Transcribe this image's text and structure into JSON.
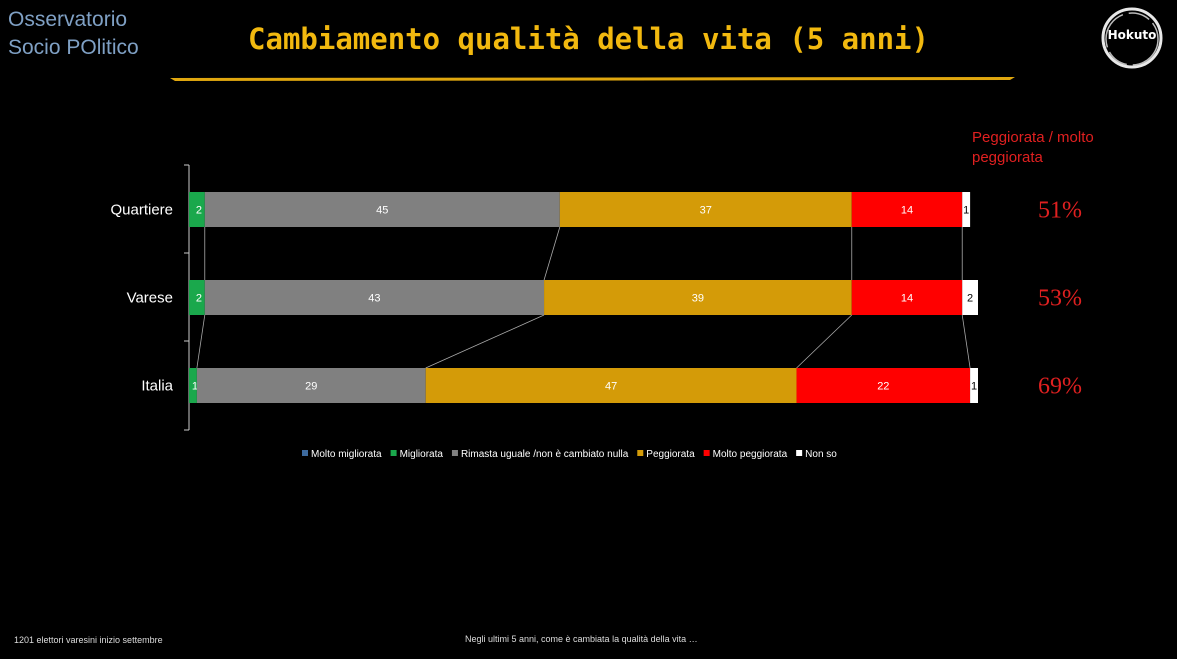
{
  "brand": {
    "line1": "Osservatorio",
    "line2": "Socio POlitico"
  },
  "logo_text": "Hokuto",
  "chart_data": {
    "type": "bar",
    "stacked": true,
    "horizontal": true,
    "title": "Cambiamento qualità della vita (5 anni)",
    "categories": [
      "Quartiere",
      "Varese",
      "Italia"
    ],
    "series": [
      {
        "name": "Molto migliorata",
        "color": "#3d6a9e",
        "values": [
          0,
          0,
          0
        ]
      },
      {
        "name": "Migliorata",
        "color": "#1aa84c",
        "values": [
          2,
          2,
          1
        ]
      },
      {
        "name": "Rimasta uguale /non è cambiato nulla",
        "color": "#808080",
        "values": [
          45,
          43,
          29
        ]
      },
      {
        "name": "Peggiorata",
        "color": "#d49b08",
        "values": [
          37,
          39,
          47
        ]
      },
      {
        "name": "Molto peggiorata",
        "color": "#ff0000",
        "values": [
          14,
          14,
          22
        ]
      },
      {
        "name": "Non so",
        "color": "#ffffff",
        "values": [
          1,
          2,
          1
        ]
      }
    ],
    "xlim": [
      0,
      100
    ],
    "legend": "bottom",
    "side_title": "Peggiorata / molto peggiorata",
    "side_values": [
      "51%",
      "53%",
      "69%"
    ]
  },
  "footer": {
    "left": "1201 elettori varesini inizio settembre",
    "center": "Negli ultimi 5 anni, come è cambiata la qualità della vita …"
  }
}
